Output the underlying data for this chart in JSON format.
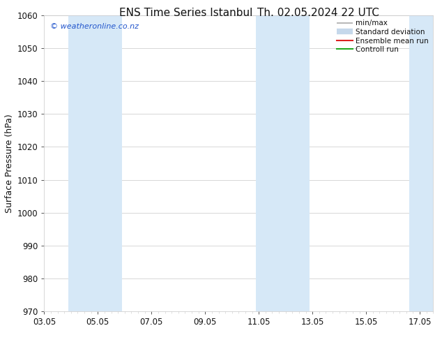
{
  "title_left": "ENS Time Series Istanbul",
  "title_right": "Th. 02.05.2024 22 UTC",
  "ylabel": "Surface Pressure (hPa)",
  "ylim": [
    970,
    1060
  ],
  "yticks": [
    970,
    980,
    990,
    1000,
    1010,
    1020,
    1030,
    1040,
    1050,
    1060
  ],
  "xlim_start": 0.0,
  "xlim_end": 14.5,
  "xtick_labels": [
    "03.05",
    "05.05",
    "07.05",
    "09.05",
    "11.05",
    "13.05",
    "15.05",
    "17.05"
  ],
  "xtick_positions": [
    0.0,
    2.0,
    4.0,
    6.0,
    8.0,
    10.0,
    12.0,
    14.0
  ],
  "shade_bands": [
    {
      "x_start": 0.9,
      "x_end": 2.9
    },
    {
      "x_start": 7.9,
      "x_end": 9.9
    },
    {
      "x_start": 13.6,
      "x_end": 14.5
    }
  ],
  "shade_color": "#d6e8f7",
  "bg_color": "#ffffff",
  "grid_color": "#c8c8c8",
  "watermark_text": "© weatheronline.co.nz",
  "watermark_color": "#2255cc",
  "legend_items": [
    {
      "label": "min/max",
      "color": "#aaaaaa",
      "lw": 1.2
    },
    {
      "label": "Standard deviation",
      "color": "#c5d8eb",
      "lw": 6
    },
    {
      "label": "Ensemble mean run",
      "color": "#dd2222",
      "lw": 1.5
    },
    {
      "label": "Controll run",
      "color": "#22aa22",
      "lw": 1.5
    }
  ],
  "font_family": "DejaVu Sans",
  "font_color": "#111111",
  "tick_label_color": "#111111",
  "title_fontsize": 11,
  "axis_label_fontsize": 9,
  "tick_fontsize": 8.5,
  "legend_fontsize": 7.5,
  "watermark_fontsize": 8
}
